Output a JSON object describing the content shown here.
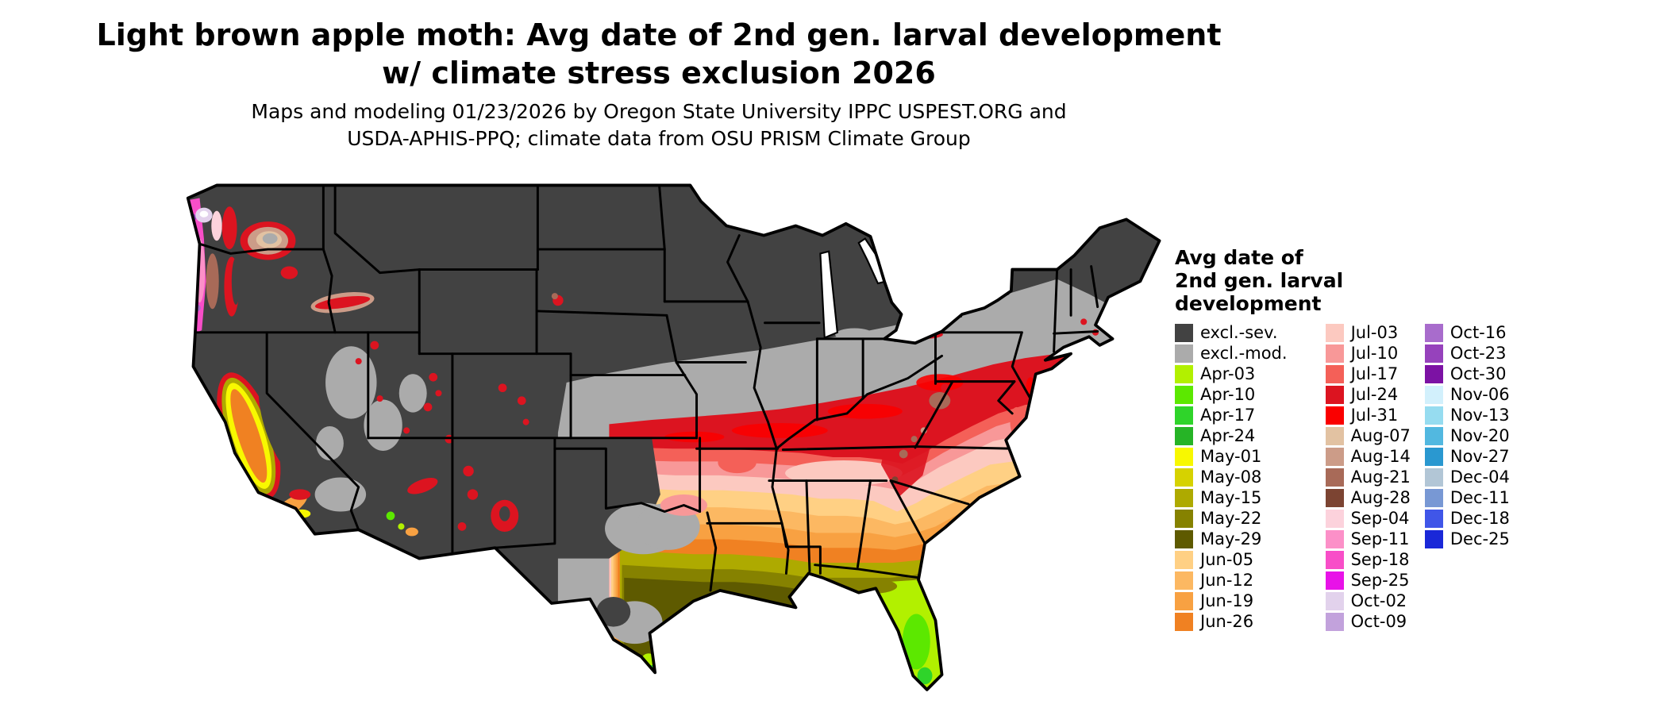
{
  "title": {
    "line1": "Light brown apple moth: Avg date of 2nd gen. larval development",
    "line2": "w/ climate stress exclusion 2026"
  },
  "subtitle": {
    "line1": "Maps and modeling 01/23/2026 by Oregon State University IPPC USPEST.ORG and",
    "line2": "USDA-APHIS-PPQ; climate data from OSU PRISM Climate Group"
  },
  "legend": {
    "title_lines": [
      "Avg date of",
      "2nd gen. larval",
      "development"
    ],
    "columns": [
      {
        "entries": [
          {
            "label": "excl.-sev.",
            "color": "#424242"
          },
          {
            "label": "excl.-mod.",
            "color": "#ababab"
          },
          {
            "label": "Apr-03",
            "color": "#b2f000"
          },
          {
            "label": "Apr-10",
            "color": "#5ce800"
          },
          {
            "label": "Apr-17",
            "color": "#2fd42a"
          },
          {
            "label": "Apr-24",
            "color": "#26b426"
          },
          {
            "label": "May-01",
            "color": "#f8f800"
          },
          {
            "label": "May-08",
            "color": "#d6d200"
          },
          {
            "label": "May-15",
            "color": "#aeaa00"
          },
          {
            "label": "May-22",
            "color": "#868200"
          },
          {
            "label": "May-29",
            "color": "#5e5a00"
          },
          {
            "label": "Jun-05",
            "color": "#ffd084"
          },
          {
            "label": "Jun-12",
            "color": "#fcb862"
          },
          {
            "label": "Jun-19",
            "color": "#f8a142"
          },
          {
            "label": "Jun-26",
            "color": "#f08122"
          }
        ]
      },
      {
        "entries": [
          {
            "label": "Jul-03",
            "color": "#fcc9c0"
          },
          {
            "label": "Jul-10",
            "color": "#f89898"
          },
          {
            "label": "Jul-17",
            "color": "#f46058"
          },
          {
            "label": "Jul-24",
            "color": "#dc1420"
          },
          {
            "label": "Jul-31",
            "color": "#fa0000"
          },
          {
            "label": "Aug-07",
            "color": "#e2c2a2"
          },
          {
            "label": "Aug-14",
            "color": "#cc9c88"
          },
          {
            "label": "Aug-21",
            "color": "#a86a58"
          },
          {
            "label": "Aug-28",
            "color": "#7c4432"
          },
          {
            "label": "Sep-04",
            "color": "#fcd2dc"
          },
          {
            "label": "Sep-11",
            "color": "#fc90c8"
          },
          {
            "label": "Sep-18",
            "color": "#f84ec8"
          },
          {
            "label": "Sep-25",
            "color": "#e812e8"
          },
          {
            "label": "Oct-02",
            "color": "#e2d2ec"
          },
          {
            "label": "Oct-09",
            "color": "#c2a2dc"
          }
        ]
      },
      {
        "entries": [
          {
            "label": "Oct-16",
            "color": "#a86ccc"
          },
          {
            "label": "Oct-23",
            "color": "#9642bc"
          },
          {
            "label": "Oct-30",
            "color": "#7c12a4"
          },
          {
            "label": "Nov-06",
            "color": "#d2f0fc"
          },
          {
            "label": "Nov-13",
            "color": "#96dcf0"
          },
          {
            "label": "Nov-20",
            "color": "#52b8e0"
          },
          {
            "label": "Nov-27",
            "color": "#2a98d0"
          },
          {
            "label": "Dec-04",
            "color": "#b2c6d6"
          },
          {
            "label": "Dec-11",
            "color": "#7898d4"
          },
          {
            "label": "Dec-18",
            "color": "#4056e8"
          },
          {
            "label": "Dec-25",
            "color": "#1a28d8"
          }
        ]
      }
    ]
  },
  "map": {
    "outline_color": "#000000",
    "water_color": "#ffffff",
    "excluded_severe_color": "#424242",
    "excluded_moderate_color": "#ababab"
  }
}
